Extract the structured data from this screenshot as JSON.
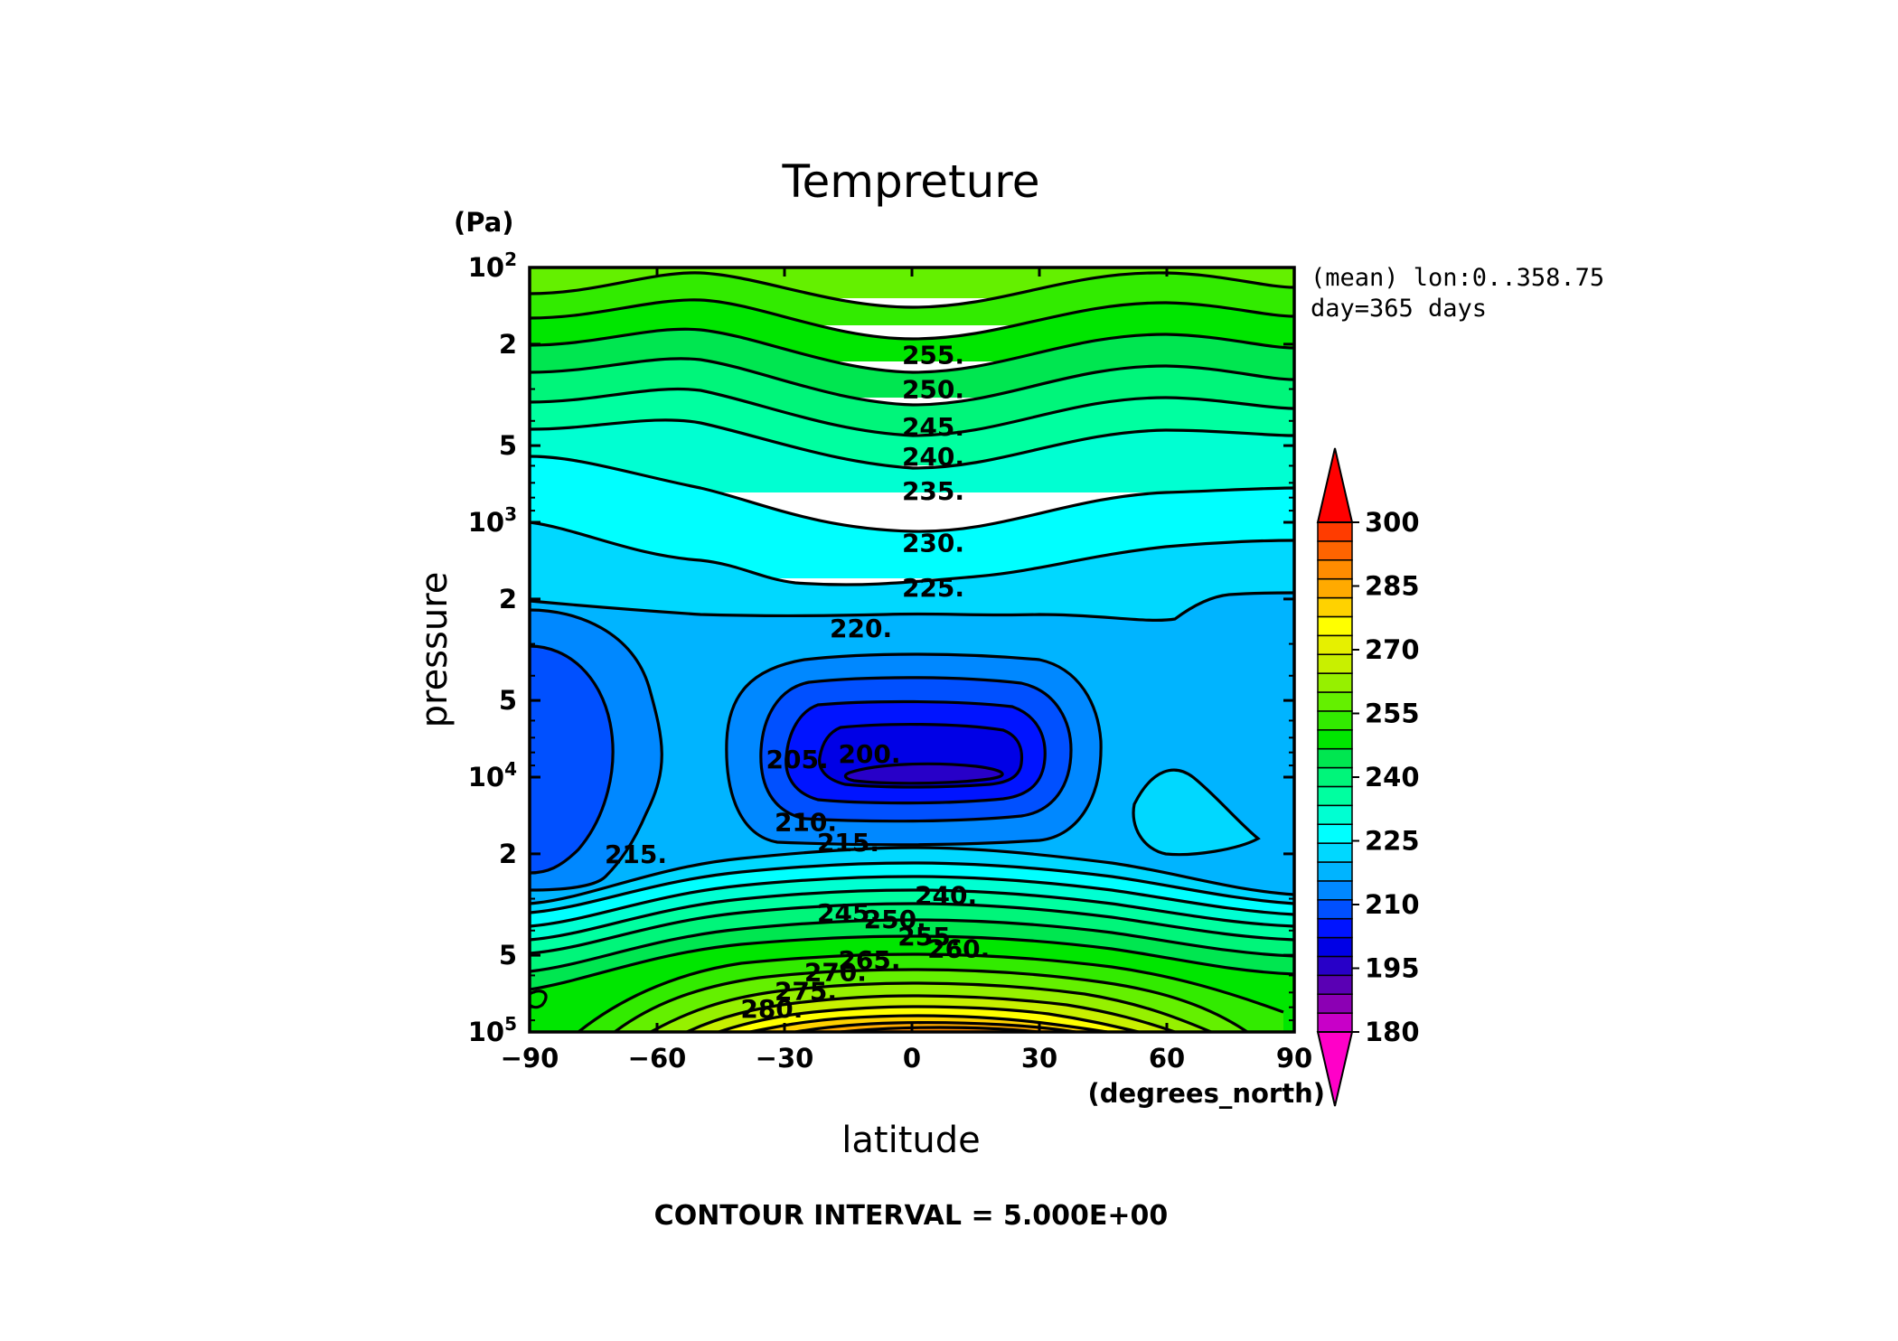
{
  "chart_data": {
    "type": "contour",
    "title": "Tempreture",
    "xlabel": "latitude",
    "xunit": "(degrees_north)",
    "ylabel": "pressure",
    "yunit": "(Pa)",
    "xlim": [
      -90,
      90
    ],
    "ylim": [
      100,
      100000
    ],
    "yscale": "log",
    "yinverted": true,
    "x_ticks": [
      "−90",
      "−60",
      "−30",
      "0",
      "30",
      "60",
      "90"
    ],
    "x_tick_values": [
      -90,
      -60,
      -30,
      0,
      30,
      60,
      90
    ],
    "y_ticks": [
      {
        "value": 100,
        "base": "10",
        "exp": "2"
      },
      {
        "value": 200,
        "base": "2",
        "exp": ""
      },
      {
        "value": 500,
        "base": "5",
        "exp": ""
      },
      {
        "value": 1000,
        "base": "10",
        "exp": "3"
      },
      {
        "value": 2000,
        "base": "2",
        "exp": ""
      },
      {
        "value": 5000,
        "base": "5",
        "exp": ""
      },
      {
        "value": 10000,
        "base": "10",
        "exp": "4"
      },
      {
        "value": 20000,
        "base": "2",
        "exp": ""
      },
      {
        "value": 50000,
        "base": "5",
        "exp": ""
      },
      {
        "value": 100000,
        "base": "10",
        "exp": "5"
      }
    ],
    "info_lines": [
      "(mean) lon:0..358.75",
      "day=365 days"
    ],
    "contour_interval_text": "CONTOUR INTERVAL = 5.000E+00",
    "colorbar": {
      "min": 180,
      "max": 300,
      "step": 5,
      "labels": [
        "300",
        "285",
        "270",
        "255",
        "240",
        "225",
        "210",
        "195",
        "180"
      ],
      "label_values": [
        300,
        285,
        270,
        255,
        240,
        225,
        210,
        195,
        180
      ],
      "colors": [
        "#ff00c8",
        "#c800c8",
        "#8c00b4",
        "#5a00b4",
        "#2800c8",
        "#0000e6",
        "#0014ff",
        "#0050ff",
        "#0088ff",
        "#00b4ff",
        "#00d8ff",
        "#00ffff",
        "#00ffd2",
        "#00ffa0",
        "#00f57a",
        "#00e650",
        "#00e600",
        "#32eb00",
        "#64f000",
        "#96f000",
        "#c8f000",
        "#e6f000",
        "#ffff00",
        "#ffd200",
        "#ffaa00",
        "#ff8c00",
        "#ff6400",
        "#ff3c00",
        "#ff0000"
      ]
    },
    "contour_labels": [
      {
        "text": "255.",
        "x": 5,
        "p": 220
      },
      {
        "text": "250.",
        "x": 5,
        "p": 300
      },
      {
        "text": "245.",
        "x": 5,
        "p": 420
      },
      {
        "text": "240.",
        "x": 5,
        "p": 550
      },
      {
        "text": "235.",
        "x": 5,
        "p": 750
      },
      {
        "text": "230.",
        "x": 5,
        "p": 1200
      },
      {
        "text": "225.",
        "x": 5,
        "p": 1800
      },
      {
        "text": "220.",
        "x": -12,
        "p": 2600
      },
      {
        "text": "200.",
        "x": -10,
        "p": 8100
      },
      {
        "text": "205.",
        "x": -27,
        "p": 8500
      },
      {
        "text": "210.",
        "x": -25,
        "p": 15000
      },
      {
        "text": "215.",
        "x": -15,
        "p": 18000
      },
      {
        "text": "215.",
        "x": -65,
        "p": 20000
      },
      {
        "text": "240.",
        "x": 8,
        "p": 29000
      },
      {
        "text": "245.",
        "x": -15,
        "p": 34000
      },
      {
        "text": "250.",
        "x": -4,
        "p": 36000
      },
      {
        "text": "255.",
        "x": 4,
        "p": 42000
      },
      {
        "text": "260.",
        "x": 11,
        "p": 47000
      },
      {
        "text": "265.",
        "x": -10,
        "p": 52000
      },
      {
        "text": "270.",
        "x": -18,
        "p": 58000
      },
      {
        "text": "275.",
        "x": -25,
        "p": 69000
      },
      {
        "text": "280.",
        "x": -33,
        "p": 81000
      }
    ]
  }
}
